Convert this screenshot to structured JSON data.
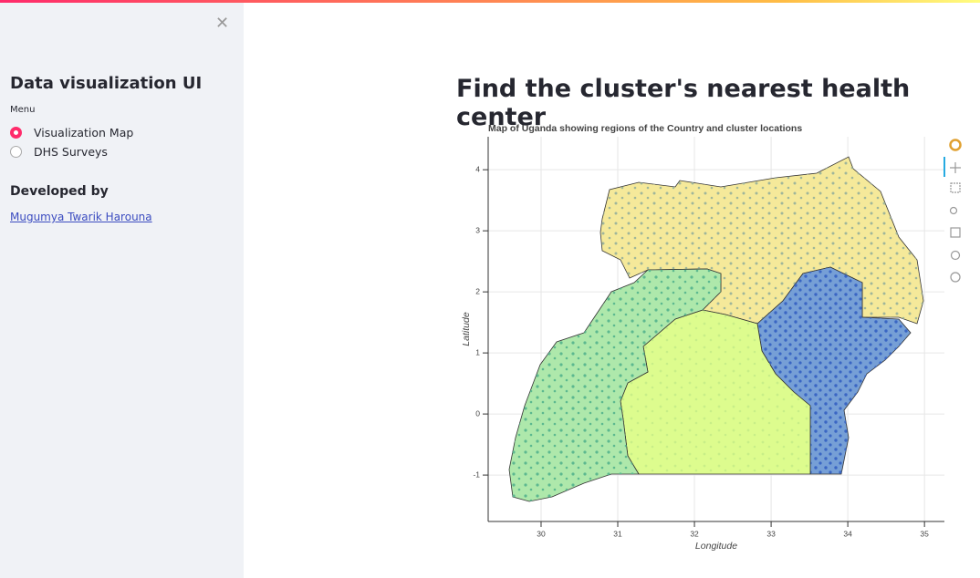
{
  "sidebar": {
    "title": "Data visualization UI",
    "menu_label": "Menu",
    "menu_options": [
      "Visualization Map",
      "DHS Surveys"
    ],
    "selected_index": 0,
    "developed_by": "Developed by",
    "author": "Mugumya Twarik Harouna"
  },
  "main": {
    "heading": "Find the cluster's nearest health center"
  },
  "chart_data": {
    "type": "map",
    "title": "Map of Uganda showing regions of the Country and cluster locations",
    "x_label": "Longitude",
    "y_label": "Latitude",
    "xlim": [
      29.31,
      35.26
    ],
    "ylim": [
      -1.76,
      4.54
    ],
    "xticks": [
      30,
      31,
      32,
      33,
      34,
      35
    ],
    "yticks": [
      -1,
      0,
      1,
      2,
      3,
      4
    ],
    "grid": true
  }
}
